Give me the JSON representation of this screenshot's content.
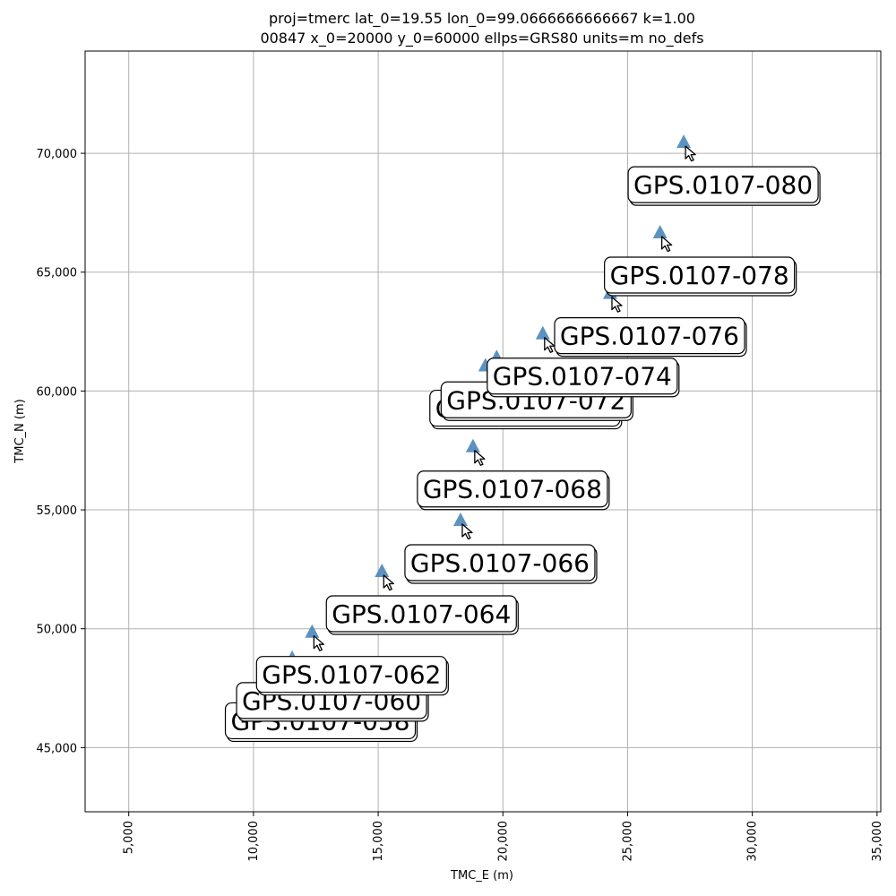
{
  "chart_data": {
    "type": "scatter",
    "title": [
      "proj=tmerc lat_0=19.55 lon_0=99.0666666666667 k=1.00",
      "00847 x_0=20000 y_0=60000 ellps=GRS80 units=m no_defs"
    ],
    "xlabel": "TMC_E (m)",
    "ylabel": "TMC_N (m)",
    "xlim": [
      3250,
      35150
    ],
    "ylim": [
      42300,
      74300
    ],
    "grid": true,
    "marker": "triangle-up",
    "marker_color": "#3f7fb5",
    "xticks": [
      5000,
      10000,
      15000,
      20000,
      25000,
      30000,
      35000
    ],
    "xtick_labels": [
      "5,000",
      "10,000",
      "15,000",
      "20,000",
      "25,000",
      "30,000",
      "35,000"
    ],
    "yticks": [
      45000,
      50000,
      55000,
      60000,
      65000,
      70000
    ],
    "ytick_labels": [
      "45,000",
      "50,000",
      "55,000",
      "60,000",
      "65,000",
      "70,000"
    ],
    "points": [
      {
        "name": "GPS.0107-058",
        "x": 11100,
        "y": 47900
      },
      {
        "name": "GPS.0107-060",
        "x": 11550,
        "y": 48750
      },
      {
        "name": "GPS.0107-062",
        "x": 12350,
        "y": 49850
      },
      {
        "name": "GPS.0107-064",
        "x": 15150,
        "y": 52400
      },
      {
        "name": "GPS.0107-066",
        "x": 18300,
        "y": 54550
      },
      {
        "name": "GPS.0107-068",
        "x": 18800,
        "y": 57650
      },
      {
        "name": "GPS.0107-070",
        "x": 19300,
        "y": 61050
      },
      {
        "name": "GPS.0107-072",
        "x": 19750,
        "y": 61400
      },
      {
        "name": "GPS.0107-074",
        "x": 21600,
        "y": 62400
      },
      {
        "name": "GPS.0107-076",
        "x": 24300,
        "y": 64100
      },
      {
        "name": "GPS.0107-078",
        "x": 26300,
        "y": 66650
      },
      {
        "name": "GPS.0107-080",
        "x": 27250,
        "y": 70450
      }
    ]
  }
}
